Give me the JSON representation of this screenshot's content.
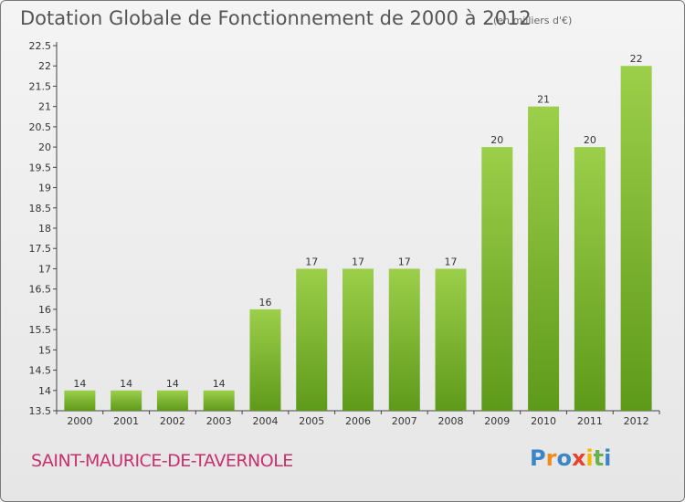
{
  "chart_data": {
    "type": "bar",
    "title": "Dotation Globale de Fonctionnement de 2000 à 2012",
    "subtitle": "(en milliers d'€)",
    "categories": [
      "2000",
      "2001",
      "2002",
      "2003",
      "2004",
      "2005",
      "2006",
      "2007",
      "2008",
      "2009",
      "2010",
      "2011",
      "2012"
    ],
    "values": [
      14,
      14,
      14,
      14,
      16,
      17,
      17,
      17,
      17,
      20,
      21,
      20,
      22
    ],
    "value_labels": [
      "14",
      "14",
      "14",
      "14",
      "16",
      "17",
      "17",
      "17",
      "17",
      "20",
      "21",
      "20",
      "22"
    ],
    "ylim": [
      13.5,
      22.5
    ],
    "yticks": [
      "13.5",
      "14",
      "14.5",
      "15",
      "15.5",
      "16",
      "16.5",
      "17",
      "17.5",
      "18",
      "18.5",
      "19",
      "19.5",
      "20",
      "20.5",
      "21",
      "21.5",
      "22",
      "22.5"
    ],
    "xlabel": "",
    "ylabel": "",
    "grid": false,
    "bar_color": "#7cb82f"
  },
  "commune": "SAINT-MAURICE-DE-TAVERNOLE",
  "logo": {
    "letters": [
      "P",
      "r",
      "o",
      "x",
      "i",
      "t",
      "i"
    ],
    "colors": [
      "#3a86c8",
      "#f08a1c",
      "#3a86c8",
      "#e8422c",
      "#f5b800",
      "#6ab04c",
      "#3a86c8"
    ]
  }
}
